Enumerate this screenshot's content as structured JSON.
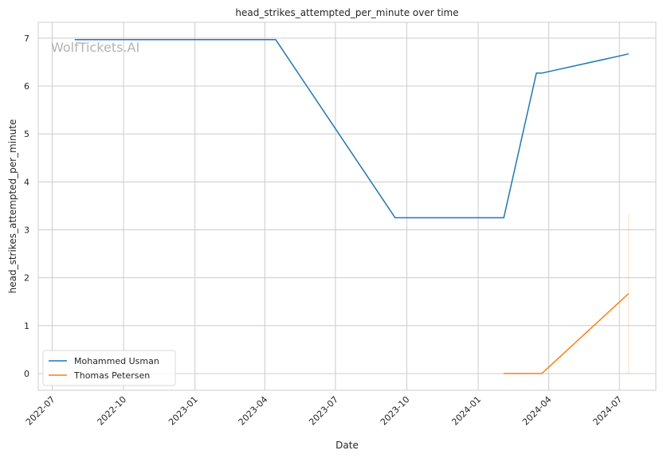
{
  "chart_data": {
    "type": "line",
    "title": "head_strikes_attempted_per_minute over time",
    "xlabel": "Date",
    "ylabel": "head_strikes_attempted_per_minute",
    "watermark": "WolfTickets.AI",
    "x_ticks": [
      "2022-07",
      "2022-10",
      "2023-01",
      "2023-04",
      "2023-07",
      "2023-10",
      "2024-01",
      "2024-04",
      "2024-07"
    ],
    "y_ticks": [
      0,
      1,
      2,
      3,
      4,
      5,
      6,
      7
    ],
    "xlim": [
      "2022-06-13",
      "2024-08-17"
    ],
    "ylim": [
      -0.35,
      7.33
    ],
    "grid": true,
    "legend_position": "lower-left",
    "series": [
      {
        "name": "Mohammed Usman",
        "color": "#1f77b4",
        "points": [
          {
            "x": "2022-07-30",
            "y": 6.97
          },
          {
            "x": "2023-04-15",
            "y": 6.97
          },
          {
            "x": "2023-09-16",
            "y": 3.25
          },
          {
            "x": "2024-02-03",
            "y": 3.25
          },
          {
            "x": "2024-03-16",
            "y": 6.27
          },
          {
            "x": "2024-03-23",
            "y": 6.27
          },
          {
            "x": "2024-07-13",
            "y": 6.67
          }
        ]
      },
      {
        "name": "Thomas Petersen",
        "color": "#ff7f0e",
        "points": [
          {
            "x": "2024-02-03",
            "y": 0
          },
          {
            "x": "2024-03-23",
            "y": 0
          },
          {
            "x": "2024-07-13",
            "y": 1.67
          }
        ],
        "error_band": {
          "x": "2024-07-13",
          "low": 0,
          "high": 3.33
        }
      }
    ]
  }
}
